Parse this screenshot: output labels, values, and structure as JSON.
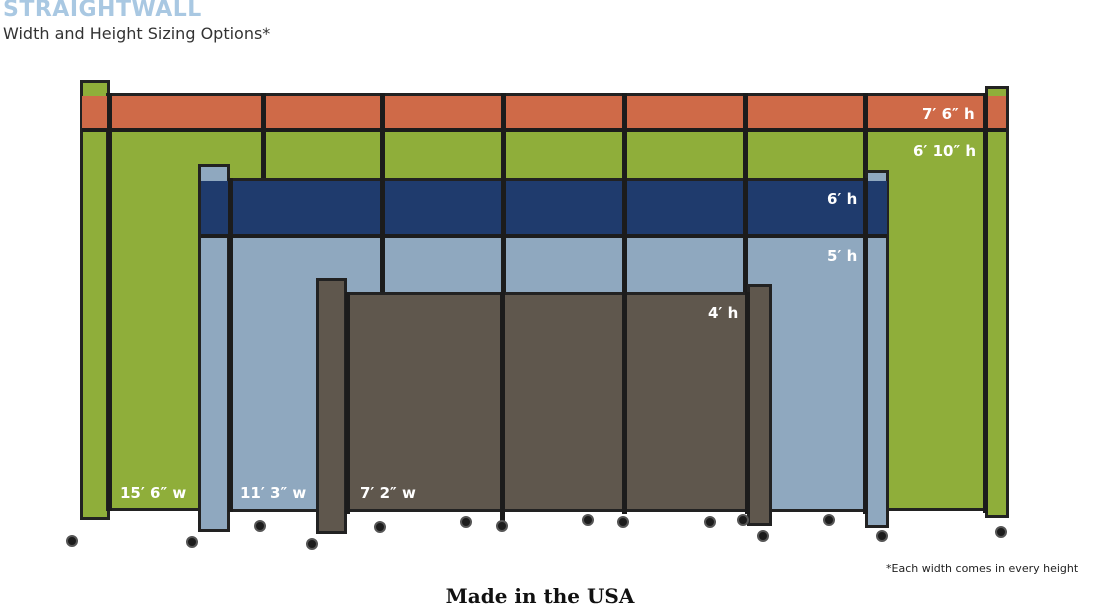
{
  "header": {
    "brand": "STRAIGHTWALL",
    "subtitle": "Width and Height Sizing Options*"
  },
  "colors": {
    "orange": "#cf6a48",
    "green": "#8fae3a",
    "navy": "#1f3b6d",
    "light_blue": "#8fa8bf",
    "brown": "#5f574d",
    "frame": "#1c1c1c"
  },
  "heights": {
    "h76": "7′ 6″ h",
    "h610": "6′ 10″ h",
    "h6": "6′ h",
    "h5": "5′ h",
    "h4": "4′ h"
  },
  "widths": {
    "w156": "15′ 6″ w",
    "w113": "11′ 3″ w",
    "w72": "7′ 2″ w"
  },
  "footnote": "*Each width comes in every height",
  "footer": "Made in the USA"
}
